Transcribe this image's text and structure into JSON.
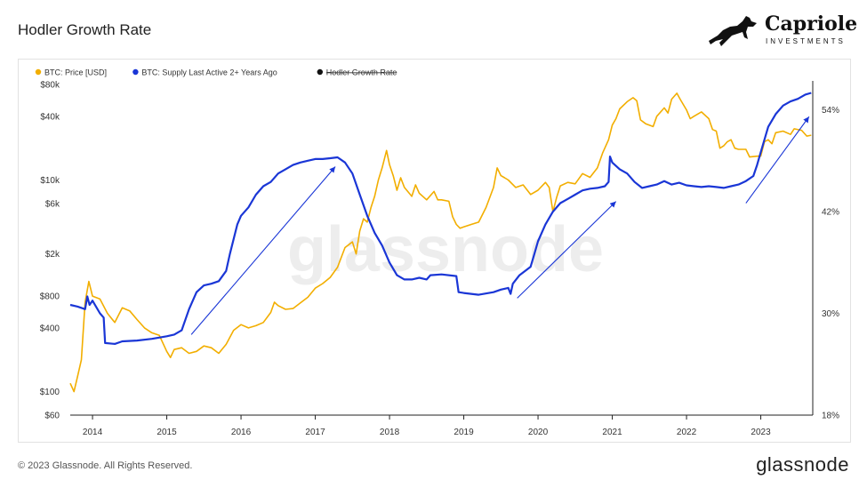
{
  "page": {
    "title": "Hodler Growth Rate",
    "copyright": "© 2023 Glassnode. All Rights Reserved.",
    "footer_logo": "glassnode",
    "watermark": "glassnode"
  },
  "brand": {
    "name": "Capriole",
    "sub": "INVESTMENTS",
    "icon": "horse-icon"
  },
  "colors": {
    "price": "#f2ae00",
    "supply": "#1a36d6",
    "hodler": "#111111",
    "arrow": "#1a36d6"
  },
  "chart_data": {
    "type": "line",
    "title": "Hodler Growth Rate",
    "legend_placement": "top-left",
    "legend": [
      {
        "label": "BTC: Price [USD]",
        "color": "#f2ae00",
        "struck": false
      },
      {
        "label": "BTC: Supply Last Active 2+ Years Ago",
        "color": "#1a36d6",
        "struck": false
      },
      {
        "label": "Hodler Growth Rate",
        "color": "#111111",
        "struck": true
      }
    ],
    "x_ticks": [
      "2014",
      "2015",
      "2016",
      "2017",
      "2018",
      "2019",
      "2020",
      "2021",
      "2022",
      "2023"
    ],
    "x_range": [
      2013.7,
      2023.7
    ],
    "y_left": {
      "scale": "log",
      "range": [
        60,
        80000
      ],
      "ticks": [
        {
          "v": 80000,
          "label": "$80k"
        },
        {
          "v": 40000,
          "label": "$40k"
        },
        {
          "v": 10000,
          "label": "$10k"
        },
        {
          "v": 6000,
          "label": "$6k"
        },
        {
          "v": 2000,
          "label": "$2k"
        },
        {
          "v": 800,
          "label": "$800"
        },
        {
          "v": 400,
          "label": "$400"
        },
        {
          "v": 100,
          "label": "$100"
        },
        {
          "v": 60,
          "label": "$60"
        }
      ]
    },
    "y_right": {
      "scale": "linear",
      "range": [
        18,
        57
      ],
      "ticks": [
        {
          "v": 54,
          "label": "54%"
        },
        {
          "v": 42,
          "label": "42%"
        },
        {
          "v": 30,
          "label": "30%"
        },
        {
          "v": 18,
          "label": "18%"
        }
      ]
    },
    "series": [
      {
        "name": "BTC: Price [USD]",
        "axis": "left",
        "color": "#f2ae00",
        "points": [
          [
            2013.7,
            120
          ],
          [
            2013.75,
            100
          ],
          [
            2013.8,
            140
          ],
          [
            2013.85,
            200
          ],
          [
            2013.9,
            700
          ],
          [
            2013.95,
            1100
          ],
          [
            2014.0,
            800
          ],
          [
            2014.1,
            750
          ],
          [
            2014.2,
            550
          ],
          [
            2014.3,
            450
          ],
          [
            2014.4,
            620
          ],
          [
            2014.5,
            580
          ],
          [
            2014.6,
            480
          ],
          [
            2014.7,
            400
          ],
          [
            2014.8,
            360
          ],
          [
            2014.9,
            340
          ],
          [
            2015.0,
            240
          ],
          [
            2015.05,
            210
          ],
          [
            2015.1,
            250
          ],
          [
            2015.2,
            260
          ],
          [
            2015.3,
            230
          ],
          [
            2015.4,
            240
          ],
          [
            2015.5,
            270
          ],
          [
            2015.6,
            260
          ],
          [
            2015.7,
            230
          ],
          [
            2015.8,
            280
          ],
          [
            2015.9,
            380
          ],
          [
            2016.0,
            430
          ],
          [
            2016.1,
            400
          ],
          [
            2016.2,
            420
          ],
          [
            2016.3,
            450
          ],
          [
            2016.4,
            560
          ],
          [
            2016.45,
            700
          ],
          [
            2016.5,
            650
          ],
          [
            2016.6,
            600
          ],
          [
            2016.7,
            610
          ],
          [
            2016.8,
            690
          ],
          [
            2016.9,
            780
          ],
          [
            2017.0,
            950
          ],
          [
            2017.1,
            1050
          ],
          [
            2017.2,
            1200
          ],
          [
            2017.3,
            1500
          ],
          [
            2017.4,
            2300
          ],
          [
            2017.5,
            2600
          ],
          [
            2017.55,
            2000
          ],
          [
            2017.6,
            3300
          ],
          [
            2017.65,
            4300
          ],
          [
            2017.7,
            4000
          ],
          [
            2017.75,
            5500
          ],
          [
            2017.8,
            7000
          ],
          [
            2017.85,
            10000
          ],
          [
            2017.9,
            13000
          ],
          [
            2017.96,
            19000
          ],
          [
            2018.0,
            14000
          ],
          [
            2018.05,
            11000
          ],
          [
            2018.1,
            8000
          ],
          [
            2018.15,
            10500
          ],
          [
            2018.2,
            8500
          ],
          [
            2018.3,
            7000
          ],
          [
            2018.35,
            9000
          ],
          [
            2018.4,
            7500
          ],
          [
            2018.5,
            6500
          ],
          [
            2018.6,
            7800
          ],
          [
            2018.65,
            6500
          ],
          [
            2018.7,
            6500
          ],
          [
            2018.8,
            6300
          ],
          [
            2018.85,
            4500
          ],
          [
            2018.9,
            3800
          ],
          [
            2018.95,
            3500
          ],
          [
            2019.0,
            3600
          ],
          [
            2019.1,
            3800
          ],
          [
            2019.2,
            4000
          ],
          [
            2019.3,
            5500
          ],
          [
            2019.4,
            8500
          ],
          [
            2019.45,
            13000
          ],
          [
            2019.5,
            11000
          ],
          [
            2019.55,
            10500
          ],
          [
            2019.6,
            10000
          ],
          [
            2019.7,
            8500
          ],
          [
            2019.8,
            9000
          ],
          [
            2019.9,
            7300
          ],
          [
            2020.0,
            8000
          ],
          [
            2020.1,
            9500
          ],
          [
            2020.15,
            8500
          ],
          [
            2020.2,
            5000
          ],
          [
            2020.25,
            6800
          ],
          [
            2020.3,
            8800
          ],
          [
            2020.4,
            9500
          ],
          [
            2020.5,
            9200
          ],
          [
            2020.6,
            11500
          ],
          [
            2020.7,
            10600
          ],
          [
            2020.8,
            13000
          ],
          [
            2020.87,
            18000
          ],
          [
            2020.95,
            24000
          ],
          [
            2021.0,
            33000
          ],
          [
            2021.05,
            38000
          ],
          [
            2021.1,
            47000
          ],
          [
            2021.2,
            55000
          ],
          [
            2021.28,
            60000
          ],
          [
            2021.33,
            56000
          ],
          [
            2021.38,
            37000
          ],
          [
            2021.45,
            34000
          ],
          [
            2021.55,
            32000
          ],
          [
            2021.6,
            40000
          ],
          [
            2021.7,
            48000
          ],
          [
            2021.75,
            43000
          ],
          [
            2021.8,
            58000
          ],
          [
            2021.87,
            66000
          ],
          [
            2021.92,
            57000
          ],
          [
            2022.0,
            46000
          ],
          [
            2022.05,
            38000
          ],
          [
            2022.1,
            40000
          ],
          [
            2022.2,
            44000
          ],
          [
            2022.3,
            38000
          ],
          [
            2022.35,
            30000
          ],
          [
            2022.4,
            29000
          ],
          [
            2022.45,
            20000
          ],
          [
            2022.5,
            21000
          ],
          [
            2022.55,
            23000
          ],
          [
            2022.6,
            24000
          ],
          [
            2022.65,
            20000
          ],
          [
            2022.7,
            19500
          ],
          [
            2022.8,
            19500
          ],
          [
            2022.85,
            16500
          ],
          [
            2022.95,
            16800
          ],
          [
            2023.0,
            16800
          ],
          [
            2023.05,
            23000
          ],
          [
            2023.1,
            24000
          ],
          [
            2023.15,
            22000
          ],
          [
            2023.2,
            28000
          ],
          [
            2023.3,
            29000
          ],
          [
            2023.4,
            27000
          ],
          [
            2023.45,
            30500
          ],
          [
            2023.55,
            29500
          ],
          [
            2023.62,
            26000
          ],
          [
            2023.68,
            26500
          ]
        ]
      },
      {
        "name": "BTC: Supply Last Active 2+ Years Ago",
        "axis": "right",
        "color": "#1a36d6",
        "points": [
          [
            2013.7,
            31.0
          ],
          [
            2013.8,
            30.8
          ],
          [
            2013.9,
            30.5
          ],
          [
            2013.93,
            32.0
          ],
          [
            2013.96,
            31.0
          ],
          [
            2014.0,
            31.5
          ],
          [
            2014.1,
            30.0
          ],
          [
            2014.15,
            29.5
          ],
          [
            2014.17,
            26.5
          ],
          [
            2014.3,
            26.4
          ],
          [
            2014.4,
            26.7
          ],
          [
            2014.6,
            26.8
          ],
          [
            2014.8,
            27.0
          ],
          [
            2015.0,
            27.3
          ],
          [
            2015.1,
            27.5
          ],
          [
            2015.2,
            28.0
          ],
          [
            2015.3,
            30.5
          ],
          [
            2015.4,
            32.5
          ],
          [
            2015.5,
            33.3
          ],
          [
            2015.6,
            33.5
          ],
          [
            2015.7,
            33.8
          ],
          [
            2015.8,
            35.0
          ],
          [
            2015.85,
            37.0
          ],
          [
            2015.95,
            40.5
          ],
          [
            2016.0,
            41.5
          ],
          [
            2016.1,
            42.5
          ],
          [
            2016.2,
            44.0
          ],
          [
            2016.3,
            45.0
          ],
          [
            2016.4,
            45.5
          ],
          [
            2016.5,
            46.5
          ],
          [
            2016.6,
            47.0
          ],
          [
            2016.7,
            47.5
          ],
          [
            2016.8,
            47.8
          ],
          [
            2016.9,
            48.0
          ],
          [
            2017.0,
            48.2
          ],
          [
            2017.1,
            48.2
          ],
          [
            2017.2,
            48.3
          ],
          [
            2017.3,
            48.4
          ],
          [
            2017.4,
            47.8
          ],
          [
            2017.5,
            46.5
          ],
          [
            2017.6,
            44.0
          ],
          [
            2017.7,
            41.5
          ],
          [
            2017.8,
            39.5
          ],
          [
            2017.9,
            38.0
          ],
          [
            2018.0,
            36.0
          ],
          [
            2018.1,
            34.5
          ],
          [
            2018.2,
            34.0
          ],
          [
            2018.3,
            34.0
          ],
          [
            2018.4,
            34.2
          ],
          [
            2018.5,
            34.0
          ],
          [
            2018.55,
            34.5
          ],
          [
            2018.7,
            34.6
          ],
          [
            2018.9,
            34.4
          ],
          [
            2018.93,
            32.5
          ],
          [
            2019.0,
            32.4
          ],
          [
            2019.2,
            32.2
          ],
          [
            2019.4,
            32.5
          ],
          [
            2019.5,
            32.8
          ],
          [
            2019.6,
            33.0
          ],
          [
            2019.63,
            32.3
          ],
          [
            2019.66,
            33.5
          ],
          [
            2019.75,
            34.5
          ],
          [
            2019.9,
            35.5
          ],
          [
            2019.95,
            37.0
          ],
          [
            2020.0,
            38.5
          ],
          [
            2020.1,
            40.5
          ],
          [
            2020.2,
            42.0
          ],
          [
            2020.3,
            43.0
          ],
          [
            2020.4,
            43.5
          ],
          [
            2020.5,
            44.0
          ],
          [
            2020.6,
            44.5
          ],
          [
            2020.7,
            44.7
          ],
          [
            2020.8,
            44.8
          ],
          [
            2020.9,
            45.0
          ],
          [
            2020.95,
            45.5
          ],
          [
            2020.97,
            48.5
          ],
          [
            2021.0,
            47.8
          ],
          [
            2021.1,
            47.0
          ],
          [
            2021.2,
            46.5
          ],
          [
            2021.3,
            45.5
          ],
          [
            2021.4,
            44.8
          ],
          [
            2021.5,
            45.0
          ],
          [
            2021.6,
            45.2
          ],
          [
            2021.7,
            45.6
          ],
          [
            2021.8,
            45.2
          ],
          [
            2021.9,
            45.4
          ],
          [
            2022.0,
            45.1
          ],
          [
            2022.1,
            45.0
          ],
          [
            2022.2,
            44.9
          ],
          [
            2022.3,
            45.0
          ],
          [
            2022.4,
            44.9
          ],
          [
            2022.5,
            44.8
          ],
          [
            2022.6,
            45.0
          ],
          [
            2022.7,
            45.2
          ],
          [
            2022.8,
            45.6
          ],
          [
            2022.9,
            46.2
          ],
          [
            2022.95,
            47.5
          ],
          [
            2023.0,
            49.0
          ],
          [
            2023.05,
            50.5
          ],
          [
            2023.1,
            52.0
          ],
          [
            2023.2,
            53.5
          ],
          [
            2023.3,
            54.5
          ],
          [
            2023.4,
            55.0
          ],
          [
            2023.5,
            55.3
          ],
          [
            2023.6,
            55.8
          ],
          [
            2023.68,
            56.0
          ]
        ]
      }
    ],
    "annotations": [
      {
        "type": "arrow",
        "from": [
          2015.33,
          27.5
        ],
        "to": [
          2017.27,
          47.3
        ]
      },
      {
        "type": "arrow",
        "from": [
          2019.72,
          31.8
        ],
        "to": [
          2021.05,
          43.2
        ]
      },
      {
        "type": "arrow",
        "from": [
          2022.8,
          43.0
        ],
        "to": [
          2023.65,
          53.2
        ]
      }
    ]
  }
}
